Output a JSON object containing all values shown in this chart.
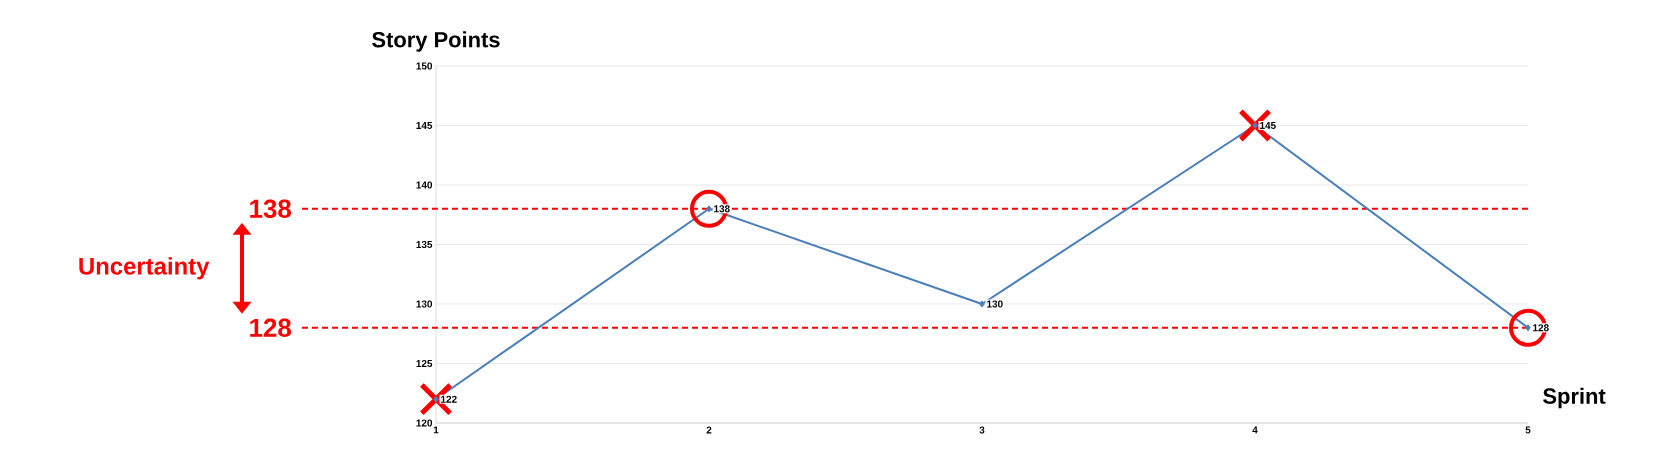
{
  "chart_data": {
    "type": "line",
    "ylabel": "Story Points",
    "xlabel": "Sprint",
    "x": [
      1,
      2,
      3,
      4,
      5
    ],
    "xlim": [
      1,
      5
    ],
    "xticks": [
      1,
      2,
      3,
      4,
      5
    ],
    "ylim": [
      120,
      150
    ],
    "yticks": [
      120,
      125,
      130,
      135,
      140,
      145,
      150
    ],
    "grid": "y",
    "annotations": [
      "Uncertainty"
    ],
    "ref_lines": [
      {
        "axis": "y",
        "value": 138,
        "label": "138",
        "color": "#ff0000",
        "line_style": "dashed"
      },
      {
        "axis": "y",
        "value": 128,
        "label": "128",
        "color": "#ff0000",
        "line_style": "dashed"
      }
    ],
    "series": [
      {
        "color": "#4a7ebb",
        "values": [
          122,
          138,
          130,
          145,
          128
        ],
        "marker": "diamond",
        "value_labels": [
          "122",
          "138",
          "130",
          "145",
          "128"
        ]
      },
      {
        "type": "scatter",
        "x": [
          1,
          4
        ],
        "values": [
          122,
          145
        ],
        "color": "#ff0000",
        "marker": "cross"
      },
      {
        "type": "scatter",
        "x": [
          2,
          5
        ],
        "values": [
          138,
          128
        ],
        "color": "#ff0000",
        "marker": "circle"
      }
    ]
  }
}
